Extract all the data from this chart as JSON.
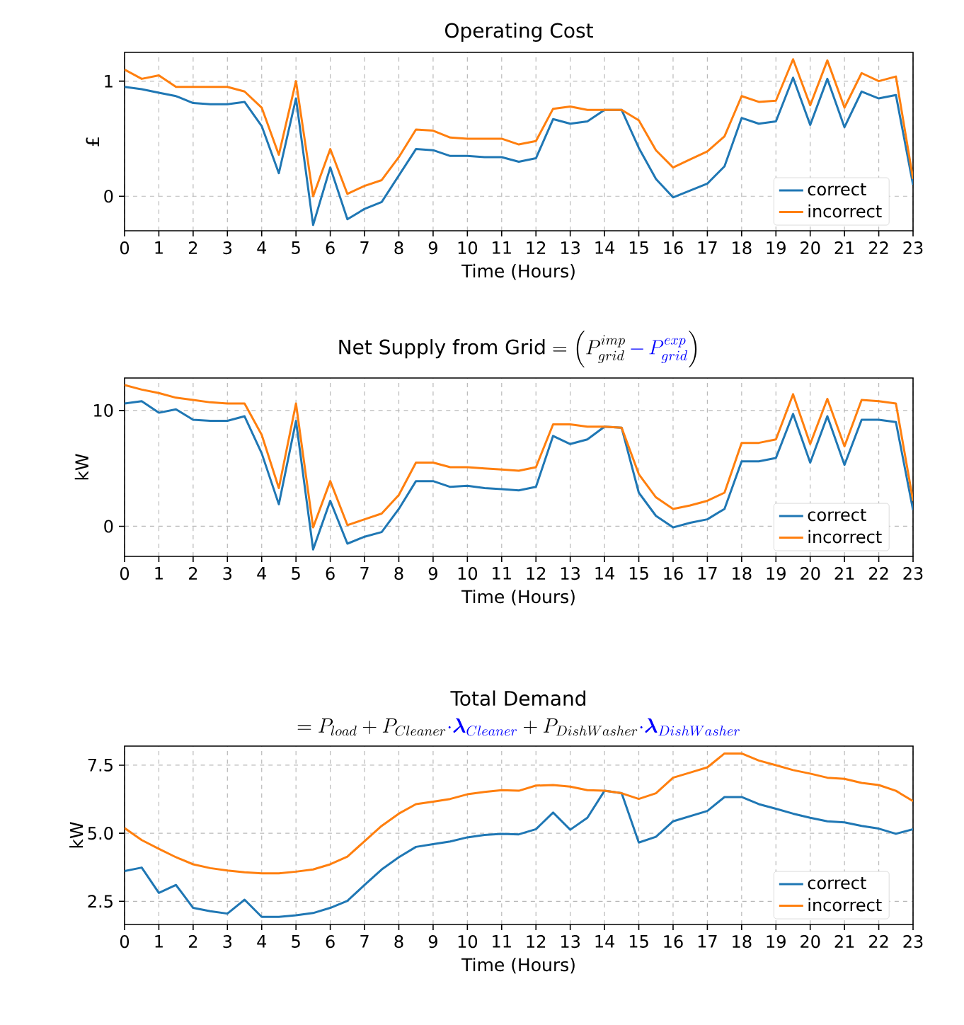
{
  "chart_data": [
    {
      "type": "line",
      "title": "Operating Cost",
      "xlabel": "Time (Hours)",
      "ylabel": "£",
      "x": [
        0,
        0.5,
        1,
        1.5,
        2,
        2.5,
        3,
        3.5,
        4,
        4.5,
        5,
        5.5,
        6,
        6.5,
        7,
        7.5,
        8,
        8.5,
        9,
        9.5,
        10,
        10.5,
        11,
        11.5,
        12,
        12.5,
        13,
        13.5,
        14,
        14.5,
        15,
        15.5,
        16,
        16.5,
        17,
        17.5,
        18,
        18.5,
        19,
        19.5,
        20,
        20.5,
        21,
        21.5,
        22,
        22.5,
        23
      ],
      "series": [
        {
          "name": "correct",
          "color": "#1f77b4",
          "values": [
            0.95,
            0.93,
            0.9,
            0.87,
            0.81,
            0.8,
            0.8,
            0.82,
            0.61,
            0.2,
            0.85,
            -0.25,
            0.25,
            -0.2,
            -0.11,
            -0.05,
            0.18,
            0.41,
            0.4,
            0.35,
            0.35,
            0.34,
            0.34,
            0.3,
            0.33,
            0.67,
            0.63,
            0.65,
            0.75,
            0.75,
            0.42,
            0.15,
            -0.01,
            0.05,
            0.11,
            0.26,
            0.68,
            0.63,
            0.65,
            1.03,
            0.62,
            1.02,
            0.6,
            0.91,
            0.85,
            0.88,
            0.1
          ]
        },
        {
          "name": "incorrect",
          "color": "#ff7f0e",
          "values": [
            1.1,
            1.02,
            1.05,
            0.95,
            0.95,
            0.95,
            0.95,
            0.91,
            0.77,
            0.36,
            1.0,
            0.0,
            0.41,
            0.02,
            0.09,
            0.14,
            0.34,
            0.58,
            0.57,
            0.51,
            0.5,
            0.5,
            0.5,
            0.45,
            0.48,
            0.76,
            0.78,
            0.75,
            0.75,
            0.75,
            0.66,
            0.4,
            0.25,
            0.32,
            0.39,
            0.52,
            0.87,
            0.82,
            0.83,
            1.19,
            0.79,
            1.18,
            0.77,
            1.07,
            1.0,
            1.04,
            0.15
          ]
        }
      ],
      "xlim": [
        0,
        23
      ],
      "xticks": [
        0,
        1,
        2,
        3,
        4,
        5,
        6,
        7,
        8,
        9,
        10,
        11,
        12,
        13,
        14,
        15,
        16,
        17,
        18,
        19,
        20,
        21,
        22,
        23
      ],
      "ylim": [
        -0.3,
        1.25
      ],
      "yticks": [
        0,
        1
      ],
      "grid": true,
      "legend": "bottom right"
    },
    {
      "type": "line",
      "title": "\\text{Net Supply from Grid} = \\left(P^{imp}_{grid}{\\color{blue}\\,-\\,P^{exp}_{grid}}\\right)",
      "xlabel": "Time (Hours)",
      "ylabel": "kW",
      "x": [
        0,
        0.5,
        1,
        1.5,
        2,
        2.5,
        3,
        3.5,
        4,
        4.5,
        5,
        5.5,
        6,
        6.5,
        7,
        7.5,
        8,
        8.5,
        9,
        9.5,
        10,
        10.5,
        11,
        11.5,
        12,
        12.5,
        13,
        13.5,
        14,
        14.5,
        15,
        15.5,
        16,
        16.5,
        17,
        17.5,
        18,
        18.5,
        19,
        19.5,
        20,
        20.5,
        21,
        21.5,
        22,
        22.5,
        23
      ],
      "series": [
        {
          "name": "correct",
          "color": "#1f77b4",
          "values": [
            10.6,
            10.8,
            9.8,
            10.1,
            9.2,
            9.1,
            9.1,
            9.5,
            6.3,
            1.9,
            9.1,
            -2.0,
            2.2,
            -1.5,
            -0.9,
            -0.5,
            1.5,
            3.9,
            3.9,
            3.4,
            3.5,
            3.3,
            3.2,
            3.1,
            3.4,
            7.8,
            7.1,
            7.5,
            8.6,
            8.5,
            2.9,
            0.9,
            -0.1,
            0.3,
            0.6,
            1.5,
            5.6,
            5.6,
            5.9,
            9.7,
            5.5,
            9.5,
            5.3,
            9.2,
            9.2,
            9.0,
            1.4
          ]
        },
        {
          "name": "incorrect",
          "color": "#ff7f0e",
          "values": [
            12.2,
            11.8,
            11.5,
            11.1,
            10.9,
            10.7,
            10.6,
            10.6,
            7.9,
            3.3,
            10.6,
            -0.1,
            3.9,
            0.1,
            0.6,
            1.1,
            2.7,
            5.5,
            5.5,
            5.1,
            5.1,
            5.0,
            4.9,
            4.8,
            5.1,
            8.8,
            8.8,
            8.6,
            8.6,
            8.5,
            4.5,
            2.5,
            1.5,
            1.8,
            2.2,
            2.9,
            7.2,
            7.2,
            7.5,
            11.4,
            7.1,
            11.0,
            6.9,
            10.9,
            10.8,
            10.6,
            2.2
          ]
        }
      ],
      "xlim": [
        0,
        23
      ],
      "xticks": [
        0,
        1,
        2,
        3,
        4,
        5,
        6,
        7,
        8,
        9,
        10,
        11,
        12,
        13,
        14,
        15,
        16,
        17,
        18,
        19,
        20,
        21,
        22,
        23
      ],
      "ylim": [
        -2.6,
        12.8
      ],
      "yticks": [
        0,
        10
      ],
      "grid": true,
      "legend": "bottom right"
    },
    {
      "type": "line",
      "title": "Total Demand",
      "subtitle": "= P_{load} + P_{Cleaner}{\\color{blue}\\cdot\\boldsymbol{\\lambda}_{Cleaner}} + P_{DishWasher}{\\color{blue}\\cdot\\boldsymbol{\\lambda}_{DishWasher}}",
      "xlabel": "Time (Hours)",
      "ylabel": "kW",
      "x": [
        0,
        0.5,
        1,
        1.5,
        2,
        2.5,
        3,
        3.5,
        4,
        4.5,
        5,
        5.5,
        6,
        6.5,
        7,
        7.5,
        8,
        8.5,
        9,
        9.5,
        10,
        10.5,
        11,
        11.5,
        12,
        12.5,
        13,
        13.5,
        14,
        14.5,
        15,
        15.5,
        16,
        16.5,
        17,
        17.5,
        18,
        18.5,
        19,
        19.5,
        20,
        20.5,
        21,
        21.5,
        22,
        22.5,
        23
      ],
      "series": [
        {
          "name": "correct",
          "color": "#1f77b4",
          "values": [
            3.61,
            3.74,
            2.81,
            3.1,
            2.26,
            2.14,
            2.05,
            2.56,
            1.93,
            1.93,
            1.99,
            2.07,
            2.26,
            2.52,
            3.1,
            3.67,
            4.12,
            4.5,
            4.6,
            4.7,
            4.85,
            4.94,
            4.98,
            4.96,
            5.15,
            5.76,
            5.13,
            5.57,
            6.56,
            6.47,
            4.66,
            4.87,
            5.44,
            5.63,
            5.82,
            6.33,
            6.33,
            6.07,
            5.9,
            5.72,
            5.57,
            5.44,
            5.4,
            5.27,
            5.17,
            4.98,
            5.15
          ]
        },
        {
          "name": "incorrect",
          "color": "#ff7f0e",
          "values": [
            5.19,
            4.75,
            4.43,
            4.12,
            3.86,
            3.72,
            3.63,
            3.57,
            3.53,
            3.53,
            3.59,
            3.67,
            3.86,
            4.14,
            4.71,
            5.27,
            5.72,
            6.07,
            6.16,
            6.26,
            6.43,
            6.52,
            6.58,
            6.56,
            6.75,
            6.77,
            6.71,
            6.58,
            6.56,
            6.47,
            6.26,
            6.47,
            7.04,
            7.23,
            7.42,
            7.93,
            7.93,
            7.67,
            7.5,
            7.32,
            7.19,
            7.04,
            7.0,
            6.85,
            6.77,
            6.56,
            6.18
          ]
        }
      ],
      "xlim": [
        0,
        23
      ],
      "xticks": [
        0,
        1,
        2,
        3,
        4,
        5,
        6,
        7,
        8,
        9,
        10,
        11,
        12,
        13,
        14,
        15,
        16,
        17,
        18,
        19,
        20,
        21,
        22,
        23
      ],
      "ylim": [
        1.65,
        8.2
      ],
      "yticks": [
        {
          "value": 2.5,
          "label": "2.5"
        },
        {
          "value": 5,
          "label": "5.0"
        },
        {
          "value": 7.5,
          "label": "7.5"
        }
      ],
      "grid": true,
      "legend": "bottom right"
    }
  ]
}
